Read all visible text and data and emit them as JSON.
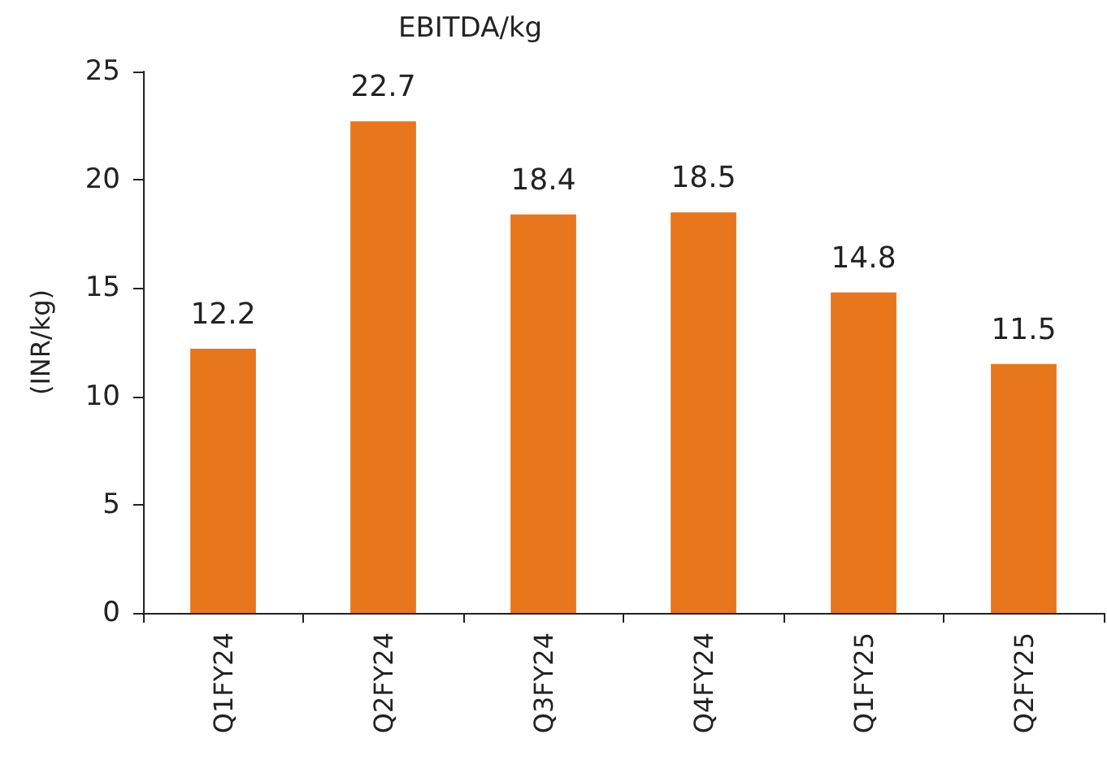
{
  "chart_data": {
    "type": "bar",
    "title": "EBITDA/kg",
    "ylabel": "(INR/kg)",
    "categories": [
      "Q1FY24",
      "Q2FY24",
      "Q3FY24",
      "Q4FY24",
      "Q1FY25",
      "Q2FY25"
    ],
    "values": [
      12.2,
      22.7,
      18.4,
      18.5,
      14.8,
      11.5
    ],
    "color": "#e8761a",
    "ylim": [
      0,
      25
    ],
    "yticks": [
      0,
      5,
      10,
      15,
      20,
      25
    ],
    "data_labels": true,
    "grid": false
  }
}
